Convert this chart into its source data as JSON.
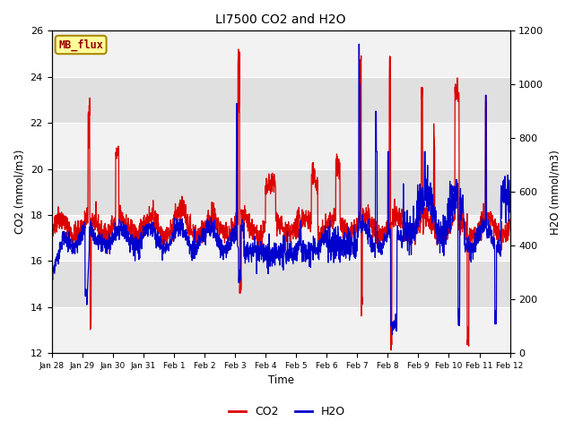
{
  "title": "LI7500 CO2 and H2O",
  "xlabel": "Time",
  "ylabel_left": "CO2 (mmol/m3)",
  "ylabel_right": "H2O (mmol/m3)",
  "co2_color": "#dd0000",
  "h2o_color": "#0000cc",
  "legend_label_co2": "CO2",
  "legend_label_h2o": "H2O",
  "annotation_text": "MB_flux",
  "annotation_bg": "#ffff99",
  "annotation_border": "#aa8800",
  "co2_ylim": [
    12,
    26
  ],
  "h2o_ylim": [
    0,
    1200
  ],
  "fig_bg": "#ffffff",
  "plot_bg_light": "#f2f2f2",
  "plot_bg_dark": "#e0e0e0",
  "tick_labels": [
    "Jan 28",
    "Jan 29",
    "Jan 30",
    "Jan 31",
    "Feb 1",
    "Feb 2",
    "Feb 3",
    "Feb 4",
    "Feb 5",
    "Feb 6",
    "Feb 7",
    "Feb 8",
    "Feb 9",
    "Feb 10",
    "Feb 11",
    "Feb 12"
  ],
  "yticks": [
    12,
    14,
    16,
    18,
    20,
    22,
    24,
    26
  ],
  "h2o_yticks": [
    0,
    200,
    400,
    600,
    800,
    1000,
    1200
  ]
}
